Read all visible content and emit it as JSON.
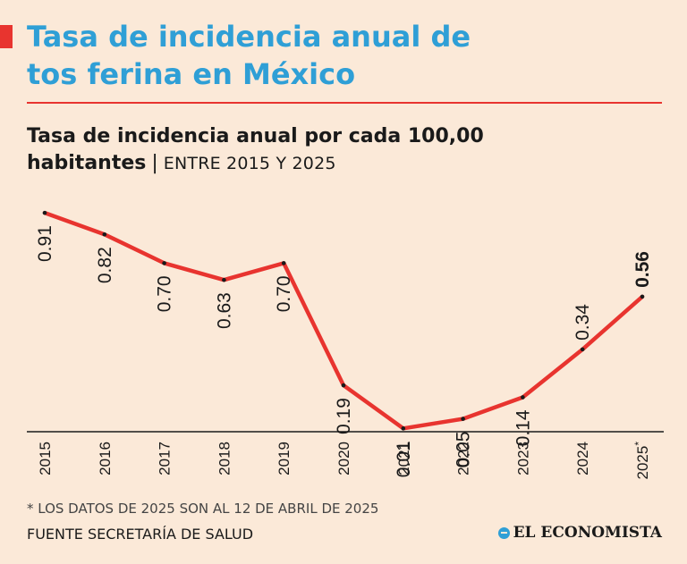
{
  "header": {
    "title_line1": "Tasa de incidencia anual de",
    "title_line2": "tos ferina en México",
    "subtitle_strong_1": "Tasa de incidencia anual  por cada 100,00",
    "subtitle_strong_2": "habitantes",
    "subtitle_separator": "|",
    "subtitle_range": "ENTRE 2015 Y 2025"
  },
  "footer": {
    "footnote": "* LOS DATOS DE 2025 SON AL 12 DE ABRIL DE 2025",
    "source": "FUENTE SECRETARÍA DE SALUD",
    "logo_text": "EL ECONOMISTA"
  },
  "colors": {
    "line": "#e8342f",
    "title": "#2f9fd6",
    "background": "#fbe9d8"
  },
  "chart_data": {
    "type": "line",
    "title": "Tasa de incidencia anual por cada 100,00 habitantes",
    "xlabel": "",
    "ylabel": "",
    "ylim": [
      0,
      1
    ],
    "grid": false,
    "categories": [
      "2015",
      "2016",
      "2017",
      "2018",
      "2019",
      "2020",
      "2021",
      "2022",
      "2023",
      "2024",
      "2025"
    ],
    "category_marks": [
      "",
      "",
      "",
      "",
      "",
      "",
      "",
      "",
      "",
      "",
      "*"
    ],
    "values": [
      0.91,
      0.82,
      0.7,
      0.63,
      0.7,
      0.19,
      0.01,
      0.05,
      0.14,
      0.34,
      0.56
    ],
    "value_labels": [
      "0.91",
      "0.82",
      "0.70",
      "0.63",
      "0.70",
      "0.19",
      "0.01",
      "0.05",
      "0.14",
      "0.34",
      "0.56"
    ],
    "highlight_index": 10
  }
}
